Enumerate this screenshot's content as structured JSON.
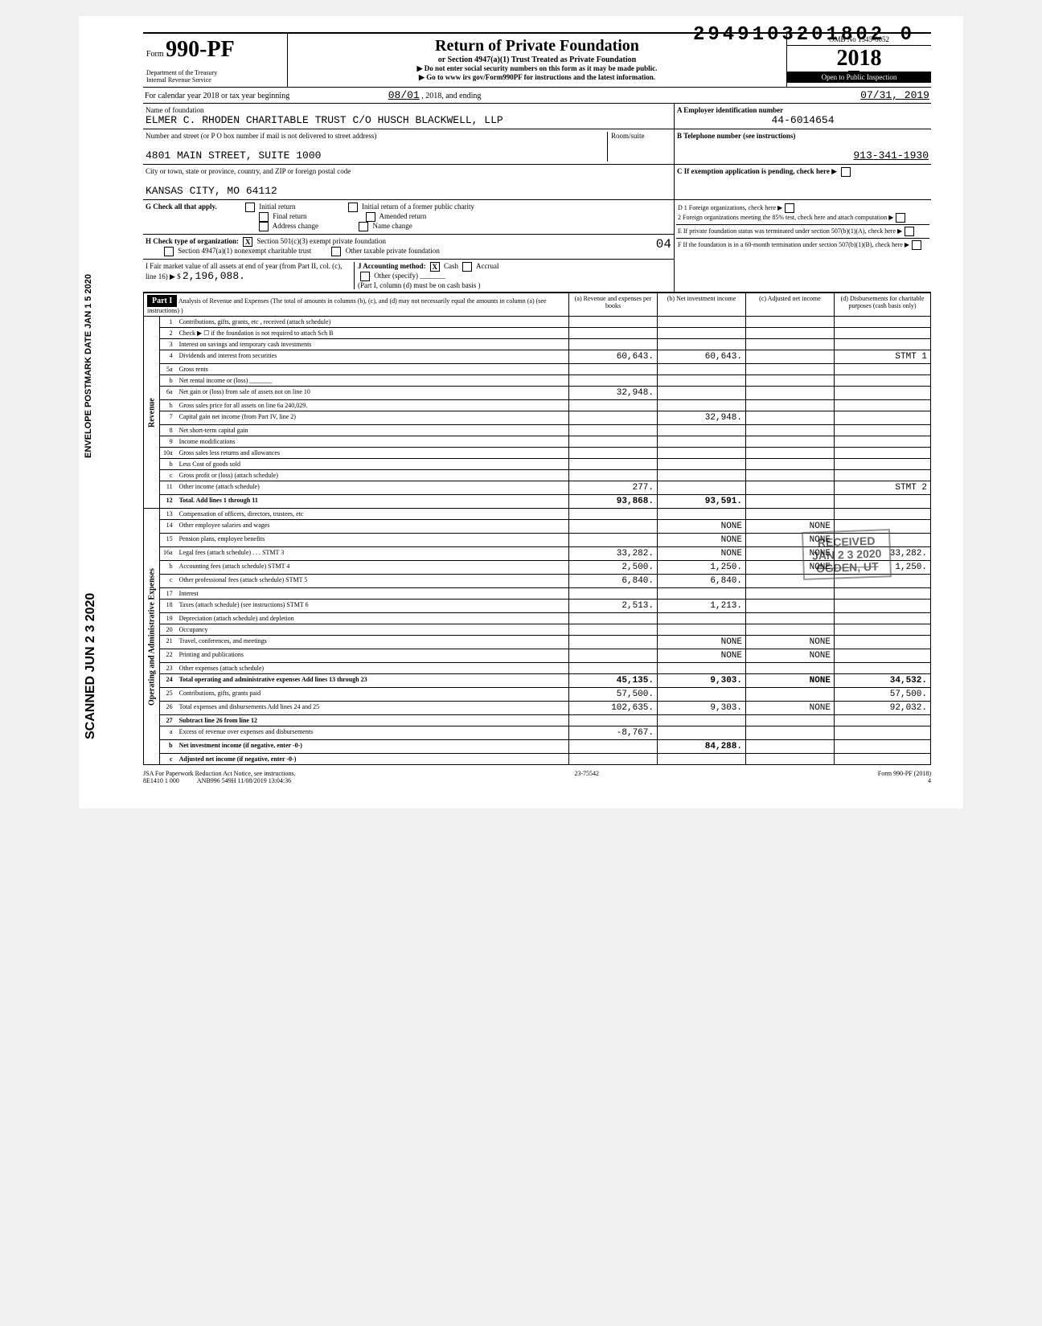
{
  "top_number": "2949103201802 0",
  "form": {
    "number": "990-PF",
    "title": "Return of Private Foundation",
    "subtitle": "or Section 4947(a)(1) Trust Treated as Private Foundation",
    "note1": "▶ Do not enter social security numbers on this form as it may be made public.",
    "note2": "▶ Go to www irs gov/Form990PF for instructions and the latest information.",
    "dept": "Department of the Treasury\nInternal Revenue Service",
    "omb": "OMB No 1545-0052",
    "year": "2018",
    "inspection": "Open to Public Inspection"
  },
  "period": {
    "prefix": "For calendar year 2018 or tax year beginning",
    "start": "08/01",
    "start_suffix": ", 2018, and ending",
    "end": "07/31, 2019"
  },
  "foundation": {
    "name_label": "Name of foundation",
    "name": "ELMER C. RHODEN CHARITABLE TRUST C/O HUSCH BLACKWELL, LLP",
    "addr_label": "Number and street (or P O box number if mail is not delivered to street address)",
    "addr": "4801 MAIN STREET, SUITE 1000",
    "city_label": "City or town, state or province, country, and ZIP or foreign postal code",
    "city": "KANSAS CITY, MO 64112",
    "room_label": "Room/suite"
  },
  "box_a": {
    "label": "A  Employer identification number",
    "value": "44-6014654"
  },
  "box_b": {
    "label": "B  Telephone number (see instructions)",
    "value": "913-341-1930"
  },
  "box_c": {
    "label": "C  If exemption application is pending, check here"
  },
  "box_d": {
    "d1": "D  1  Foreign organizations, check here",
    "d2": "2  Foreign organizations meeting the 85% test, check here and attach computation"
  },
  "box_e": {
    "label": "E  If private foundation status was terminated under section 507(b)(1)(A), check here"
  },
  "box_f": {
    "label": "F  If the foundation is in a 60-month termination under section 507(b)(1)(B), check here"
  },
  "check_g": {
    "label": "G Check all that apply.",
    "opts": [
      "Initial return",
      "Final return",
      "Address change",
      "Initial return of a former public charity",
      "Amended return",
      "Name change"
    ]
  },
  "check_h": {
    "label": "H Check type of organization:",
    "opts": [
      "Section 501(c)(3) exempt private foundation",
      "Section 4947(a)(1) nonexempt charitable trust",
      "Other taxable private foundation"
    ],
    "checked_idx": 0,
    "code": "04"
  },
  "line_i": {
    "label": "I  Fair market value of all assets at end of year (from Part II, col. (c), line 16) ▶ $",
    "value": "2,196,088."
  },
  "line_j": {
    "label": "J Accounting method:",
    "opts": [
      "Cash",
      "Accrual",
      "Other (specify)"
    ],
    "checked": "Cash",
    "note": "(Part I, column (d) must be on cash basis )"
  },
  "part1": {
    "header": "Part I",
    "title": "Analysis of Revenue and Expenses (The total of amounts in columns (b), (c), and (d) may not necessarily equal the amounts in column (a) (see instructions) )",
    "cols": [
      "(a) Revenue and expenses per books",
      "(b) Net investment income",
      "(c) Adjusted net income",
      "(d) Disbursements for charitable purposes (cash basis only)"
    ]
  },
  "revenue_label": "Revenue",
  "expenses_label": "Operating and Administrative Expenses",
  "rows": [
    {
      "n": "1",
      "desc": "Contributions, gifts, grants, etc , received (attach schedule)"
    },
    {
      "n": "2",
      "desc": "Check ▶ ☐ if the foundation is not required to attach Sch B"
    },
    {
      "n": "3",
      "desc": "Interest on savings and temporary cash investments"
    },
    {
      "n": "4",
      "desc": "Dividends and interest from securities",
      "a": "60,643.",
      "b": "60,643.",
      "d": "STMT 1"
    },
    {
      "n": "5a",
      "desc": "Gross rents"
    },
    {
      "n": "b",
      "desc": "Net rental income or (loss) _______"
    },
    {
      "n": "6a",
      "desc": "Net gain or (loss) from sale of assets not on line 10",
      "a": "32,948."
    },
    {
      "n": "b",
      "desc": "Gross sales price for all assets on line 6a           240,029."
    },
    {
      "n": "7",
      "desc": "Capital gain net income (from Part IV, line 2)",
      "b": "32,948."
    },
    {
      "n": "8",
      "desc": "Net short-term capital gain"
    },
    {
      "n": "9",
      "desc": "Income modifications"
    },
    {
      "n": "10a",
      "desc": "Gross sales less returns and allowances"
    },
    {
      "n": "b",
      "desc": "Less Cost of goods sold"
    },
    {
      "n": "c",
      "desc": "Gross profit or (loss) (attach schedule)"
    },
    {
      "n": "11",
      "desc": "Other income (attach schedule)",
      "a": "277.",
      "d": "STMT 2"
    },
    {
      "n": "12",
      "desc": "Total. Add lines 1 through 11",
      "a": "93,868.",
      "b": "93,591.",
      "bold": true
    },
    {
      "n": "13",
      "desc": "Compensation of officers, directors, trustees, etc"
    },
    {
      "n": "14",
      "desc": "Other employee salaries and wages",
      "b": "NONE",
      "c": "NONE"
    },
    {
      "n": "15",
      "desc": "Pension plans, employee benefits",
      "b": "NONE",
      "c": "NONE"
    },
    {
      "n": "16a",
      "desc": "Legal fees (attach schedule) . . . STMT 3",
      "a": "33,282.",
      "b": "NONE",
      "c": "NONE",
      "d": "33,282."
    },
    {
      "n": "b",
      "desc": "Accounting fees (attach schedule) STMT 4",
      "a": "2,500.",
      "b": "1,250.",
      "c": "NONE",
      "d": "1,250."
    },
    {
      "n": "c",
      "desc": "Other professional fees (attach schedule) STMT 5",
      "a": "6,840.",
      "b": "6,840."
    },
    {
      "n": "17",
      "desc": "Interest"
    },
    {
      "n": "18",
      "desc": "Taxes (attach schedule) (see instructions) STMT 6",
      "a": "2,513.",
      "b": "1,213."
    },
    {
      "n": "19",
      "desc": "Depreciation (attach schedule) and depletion"
    },
    {
      "n": "20",
      "desc": "Occupancy"
    },
    {
      "n": "21",
      "desc": "Travel, conferences, and meetings",
      "b": "NONE",
      "c": "NONE"
    },
    {
      "n": "22",
      "desc": "Printing and publications",
      "b": "NONE",
      "c": "NONE"
    },
    {
      "n": "23",
      "desc": "Other expenses (attach schedule)"
    },
    {
      "n": "24",
      "desc": "Total operating and administrative expenses Add lines 13 through 23",
      "a": "45,135.",
      "b": "9,303.",
      "c": "NONE",
      "d": "34,532.",
      "bold": true
    },
    {
      "n": "25",
      "desc": "Contributions, gifts, grants paid",
      "a": "57,500.",
      "d": "57,500."
    },
    {
      "n": "26",
      "desc": "Total expenses and disbursements Add lines 24 and 25",
      "a": "102,635.",
      "b": "9,303.",
      "c": "NONE",
      "d": "92,032."
    },
    {
      "n": "27",
      "desc": "Subtract line 26 from line 12",
      "bold": true
    },
    {
      "n": "a",
      "desc": "Excess of revenue over expenses and disbursements",
      "a": "-8,767."
    },
    {
      "n": "b",
      "desc": "Net investment income (if negative, enter -0-)",
      "b": "84,288.",
      "bold": true
    },
    {
      "n": "c",
      "desc": "Adjusted net income (if negative, enter -0-)",
      "bold": true
    }
  ],
  "stamp": {
    "line1": "RECEIVED",
    "line2": "JAN 2 3 2020",
    "line3": "OGDEN, UT"
  },
  "footer": {
    "left": "JSA For Paperwork Reduction Act Notice, see instructions.",
    "code": "8E1410 1 000",
    "mid": "ANB996 549H 11/08/2019 13:04:36",
    "center": "23-75542",
    "formref": "Form 990-PF (2018)",
    "page": "4"
  },
  "side": {
    "scanned": "SCANNED JUN 2 3 2020",
    "postmark": "ENVELOPE\nPOSTMARK DATE JAN 1 5 2020"
  }
}
